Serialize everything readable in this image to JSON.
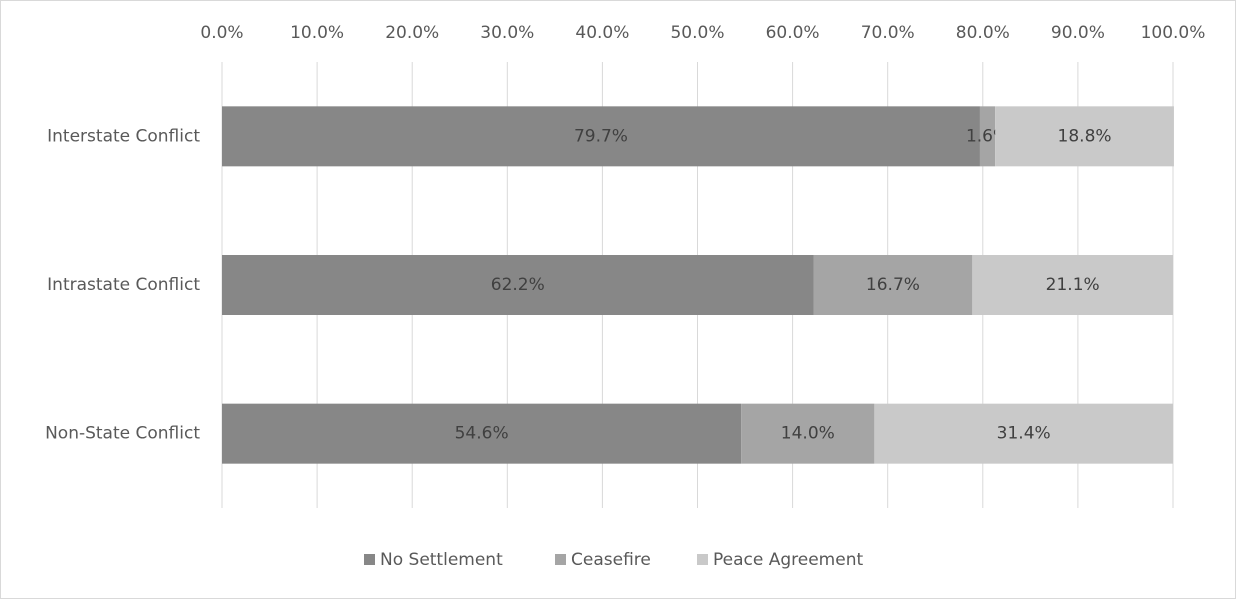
{
  "chart_data": {
    "type": "stacked_bar_horizontal",
    "categories": [
      "Interstate Conflict",
      "Intrastate Conflict",
      "Non-State Conflict"
    ],
    "series": [
      {
        "name": "No Settlement",
        "color": "#878787",
        "values": [
          79.7,
          62.2,
          54.6
        ],
        "value_labels": [
          "79.7%",
          "62.2%",
          "54.6%"
        ]
      },
      {
        "name": "Ceasefire",
        "color": "#a5a5a5",
        "values": [
          1.6,
          16.7,
          14.0
        ],
        "value_labels": [
          "1.6%",
          "16.7%",
          "14.0%"
        ]
      },
      {
        "name": "Peace Agreement",
        "color": "#c9c9c9",
        "values": [
          18.8,
          21.1,
          31.4
        ],
        "value_labels": [
          "18.8%",
          "21.1%",
          "31.4%"
        ]
      }
    ],
    "xlim": [
      0,
      100
    ],
    "xticks": [
      {
        "value": 0,
        "label": "0.0%"
      },
      {
        "value": 10,
        "label": "10.0%"
      },
      {
        "value": 20,
        "label": "20.0%"
      },
      {
        "value": 30,
        "label": "30.0%"
      },
      {
        "value": 40,
        "label": "40.0%"
      },
      {
        "value": 50,
        "label": "50.0%"
      },
      {
        "value": 60,
        "label": "60.0%"
      },
      {
        "value": 70,
        "label": "70.0%"
      },
      {
        "value": 80,
        "label": "80.0%"
      },
      {
        "value": 90,
        "label": "90.0%"
      },
      {
        "value": 100,
        "label": "100.0%"
      }
    ],
    "grid": true,
    "legend": "bottom"
  }
}
